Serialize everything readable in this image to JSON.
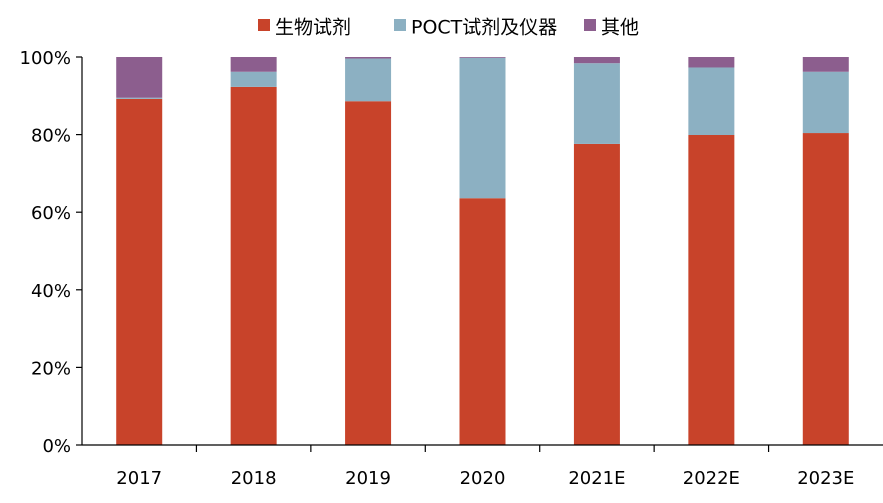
{
  "chart_data": {
    "type": "bar",
    "stacked": true,
    "categories": [
      "2017",
      "2018",
      "2019",
      "2020",
      "2021E",
      "2022E",
      "2023E"
    ],
    "series": [
      {
        "name": "生物试剂",
        "color": "#C8432A",
        "values": [
          89.2,
          92.3,
          88.6,
          63.6,
          77.6,
          79.9,
          80.4
        ]
      },
      {
        "name": "POCT试剂及仪器",
        "color": "#8CB0C2",
        "values": [
          0.3,
          3.9,
          11.0,
          36.2,
          20.8,
          17.4,
          15.8
        ]
      },
      {
        "name": "其他",
        "color": "#8C5E8E",
        "values": [
          10.5,
          3.8,
          0.4,
          0.2,
          1.6,
          2.7,
          3.8
        ]
      }
    ],
    "yticks": [
      "0%",
      "20%",
      "40%",
      "60%",
      "80%",
      "100%"
    ],
    "ylim": [
      0,
      100
    ],
    "legend": "top-center",
    "grid": false
  }
}
